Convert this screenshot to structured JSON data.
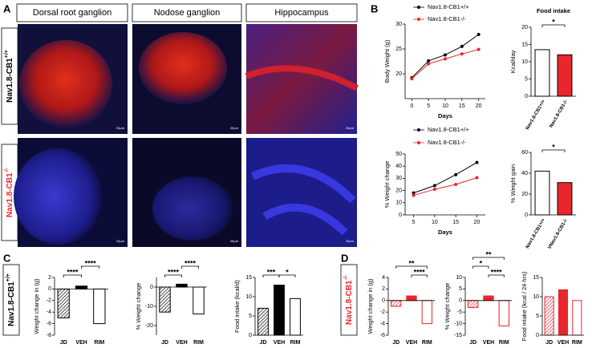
{
  "panel_labels": [
    "A",
    "B",
    "C",
    "D"
  ],
  "image_headers": [
    "Dorsal root ganglion",
    "Nodose ganglion",
    "Hippocampus"
  ],
  "row_labels": [
    {
      "name": "Nav1.8-CB1",
      "sup": "+/+"
    },
    {
      "name": "Nav1.8-CB1",
      "sup": "-/-"
    }
  ],
  "scale_label": "20µm",
  "chart_data": [
    {
      "type": "line",
      "x": [
        0,
        5,
        10,
        15,
        20
      ],
      "xlim": [
        -2,
        22
      ],
      "xticks": [
        0,
        5,
        10,
        15,
        20
      ],
      "ylim": [
        15,
        30
      ],
      "yticks": [
        20,
        25,
        30
      ],
      "xlabel": "Days",
      "ylabel": "Body Weight (g)",
      "series": [
        {
          "name": "Nav1.8-CB1+/+",
          "color": "#000000",
          "values": [
            19.2,
            22.6,
            23.8,
            25.5,
            27.9
          ]
        },
        {
          "name": "Nav1.8-CB1-/-",
          "color": "#e8262c",
          "values": [
            19.0,
            22.0,
            23.0,
            24.0,
            24.9
          ]
        }
      ]
    },
    {
      "type": "line",
      "x": [
        5,
        10,
        15,
        20
      ],
      "xlim": [
        3,
        22
      ],
      "xticks": [
        5,
        10,
        15,
        20
      ],
      "ylim": [
        0,
        50
      ],
      "yticks": [
        0,
        10,
        20,
        30,
        40,
        50
      ],
      "xlabel": "Days",
      "ylabel": "% Weight change",
      "series": [
        {
          "name": "Nav1.8-CB1+/+",
          "color": "#000000",
          "values": [
            18,
            24,
            33,
            43
          ]
        },
        {
          "name": "Nav1.8-CB1-/-",
          "color": "#e8262c",
          "values": [
            16,
            21,
            25,
            30.5
          ]
        }
      ]
    },
    {
      "type": "bar",
      "title": "Food intake",
      "ylabel": "Kcal/day",
      "categories": [
        "Nav1.8-CB1+/+",
        "Nav1.8-CB1-/-"
      ],
      "values": [
        13.5,
        12.0
      ],
      "colors": [
        "#ffffff",
        "#e8262c"
      ],
      "edgecolor": "#000000",
      "hatched": [
        false,
        false
      ],
      "ylim": [
        0,
        20
      ],
      "yticks": [
        0,
        5,
        10,
        15,
        20
      ],
      "annotations": [
        "*"
      ]
    },
    {
      "type": "bar",
      "ylabel": "% Weight gain",
      "categories": [
        "Nav1.8-CB1+/+",
        "VNav1.8-CB1-/-"
      ],
      "values": [
        42,
        31
      ],
      "colors": [
        "#ffffff",
        "#e8262c"
      ],
      "edgecolor": "#000000",
      "hatched": [
        false,
        false
      ],
      "ylim": [
        0,
        60
      ],
      "yticks": [
        0,
        20,
        40,
        60
      ],
      "annotations": [
        "*"
      ]
    },
    {
      "type": "bar",
      "ylabel": "Weight change in (g)",
      "categories": [
        "JD",
        "VEH",
        "RIM"
      ],
      "values": [
        -5,
        0.5,
        -6
      ],
      "colors": [
        "#ffffff",
        "#000000",
        "#ffffff"
      ],
      "edgecolor": "#000000",
      "hatched": [
        true,
        false,
        false
      ],
      "ylim": [
        -8,
        2
      ],
      "yticks": [
        -8,
        -6,
        -4,
        -2,
        0,
        2
      ],
      "annotations": [
        "****",
        "****"
      ]
    },
    {
      "type": "bar",
      "ylabel": "% Weight change",
      "categories": [
        "JD",
        "VEH",
        "RIM"
      ],
      "values": [
        -13,
        1.5,
        -14
      ],
      "colors": [
        "#ffffff",
        "#000000",
        "#ffffff"
      ],
      "edgecolor": "#000000",
      "hatched": [
        true,
        false,
        false
      ],
      "ylim": [
        -25,
        5
      ],
      "yticks": [
        -20,
        -10,
        0
      ],
      "annotations": [
        "****",
        "****"
      ]
    },
    {
      "type": "bar",
      "ylabel": "Food intake (kcal/d)",
      "categories": [
        "JD",
        "VEH",
        "RIM"
      ],
      "values": [
        7,
        13,
        9.5
      ],
      "colors": [
        "#ffffff",
        "#000000",
        "#ffffff"
      ],
      "edgecolor": "#000000",
      "hatched": [
        true,
        false,
        false
      ],
      "ylim": [
        0,
        15
      ],
      "yticks": [
        0,
        5,
        10,
        15
      ],
      "annotations": [
        "***",
        "*"
      ]
    },
    {
      "type": "bar",
      "ylabel": "Weight change in (g)",
      "categories": [
        "JD",
        "VEH",
        "RIM"
      ],
      "values": [
        -1,
        0.8,
        -4
      ],
      "colors": [
        "#ffffff",
        "#e8262c",
        "#ffffff"
      ],
      "edgecolor": "#e8262c",
      "hatched": [
        true,
        false,
        false
      ],
      "ylim": [
        -6,
        4
      ],
      "yticks": [
        -6,
        -4,
        -2,
        0,
        2,
        4
      ],
      "annotations": [
        "**",
        "****"
      ]
    },
    {
      "type": "bar",
      "ylabel": "% Weight change",
      "categories": [
        "JD",
        "VEH",
        "RIM"
      ],
      "values": [
        -3,
        2,
        -11
      ],
      "colors": [
        "#ffffff",
        "#e8262c",
        "#ffffff"
      ],
      "edgecolor": "#e8262c",
      "hatched": [
        true,
        false,
        false
      ],
      "ylim": [
        -15,
        10
      ],
      "yticks": [
        -15,
        -10,
        -5,
        0,
        5,
        10
      ],
      "annotations": [
        "**",
        "*",
        "****"
      ]
    },
    {
      "type": "bar",
      "ylabel": "Food intake (kcal / 24 hrs)",
      "categories": [
        "JD",
        "VEH",
        "RIM"
      ],
      "values": [
        10,
        11.8,
        9
      ],
      "colors": [
        "#ffffff",
        "#e8262c",
        "#ffffff"
      ],
      "edgecolor": "#e8262c",
      "hatched": [
        true,
        false,
        false
      ],
      "ylim": [
        0,
        15
      ],
      "yticks": [
        0,
        5,
        10,
        15
      ],
      "annotations": []
    }
  ]
}
